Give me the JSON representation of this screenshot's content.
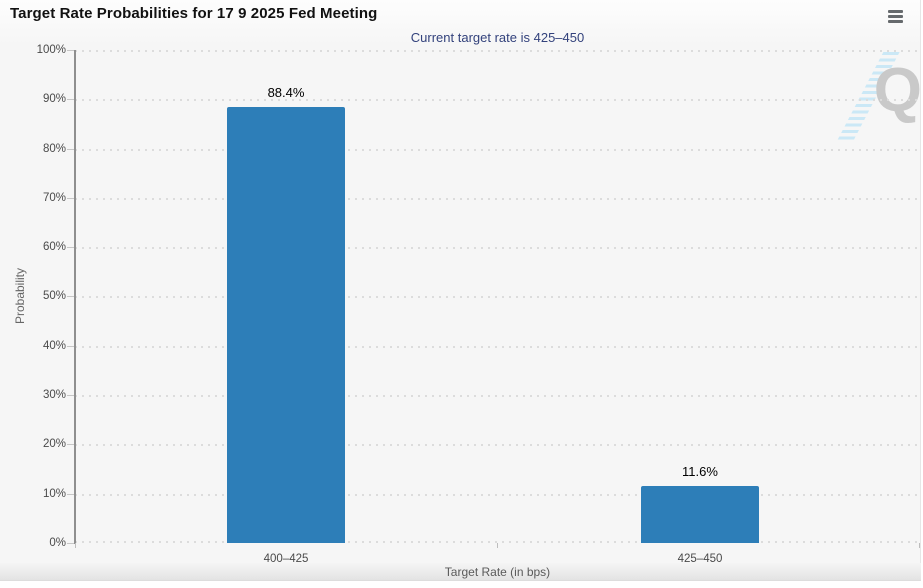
{
  "header": {
    "title": "Target Rate Probabilities for 17 9 2025 Fed Meeting",
    "subtitle": "Current target rate is 425–450"
  },
  "watermark": {
    "letter": "Q"
  },
  "colors": {
    "bar": "#2d7eb8",
    "subtitle_text": "#33427c",
    "background": "#f6f6f6",
    "watermark_gray": "#c9c9c9",
    "watermark_blue": "#c6e7f6"
  },
  "chart_data": {
    "type": "bar",
    "title": "Target Rate Probabilities for 17 9 2025 Fed Meeting",
    "subtitle": "Current target rate is 425–450",
    "categories": [
      "400–425",
      "425–450"
    ],
    "values": [
      88.4,
      11.6
    ],
    "value_labels": [
      "88.4%",
      "11.6%"
    ],
    "xlabel": "Target Rate (in bps)",
    "ylabel": "Probability",
    "ylim": [
      0,
      100
    ],
    "ytick_step": 10,
    "ytick_labels": [
      "0%",
      "10%",
      "20%",
      "30%",
      "40%",
      "50%",
      "60%",
      "70%",
      "80%",
      "90%",
      "100%"
    ],
    "grid": "dotted-horizontal",
    "legend": "none",
    "bar_color": "#2d7eb8"
  }
}
